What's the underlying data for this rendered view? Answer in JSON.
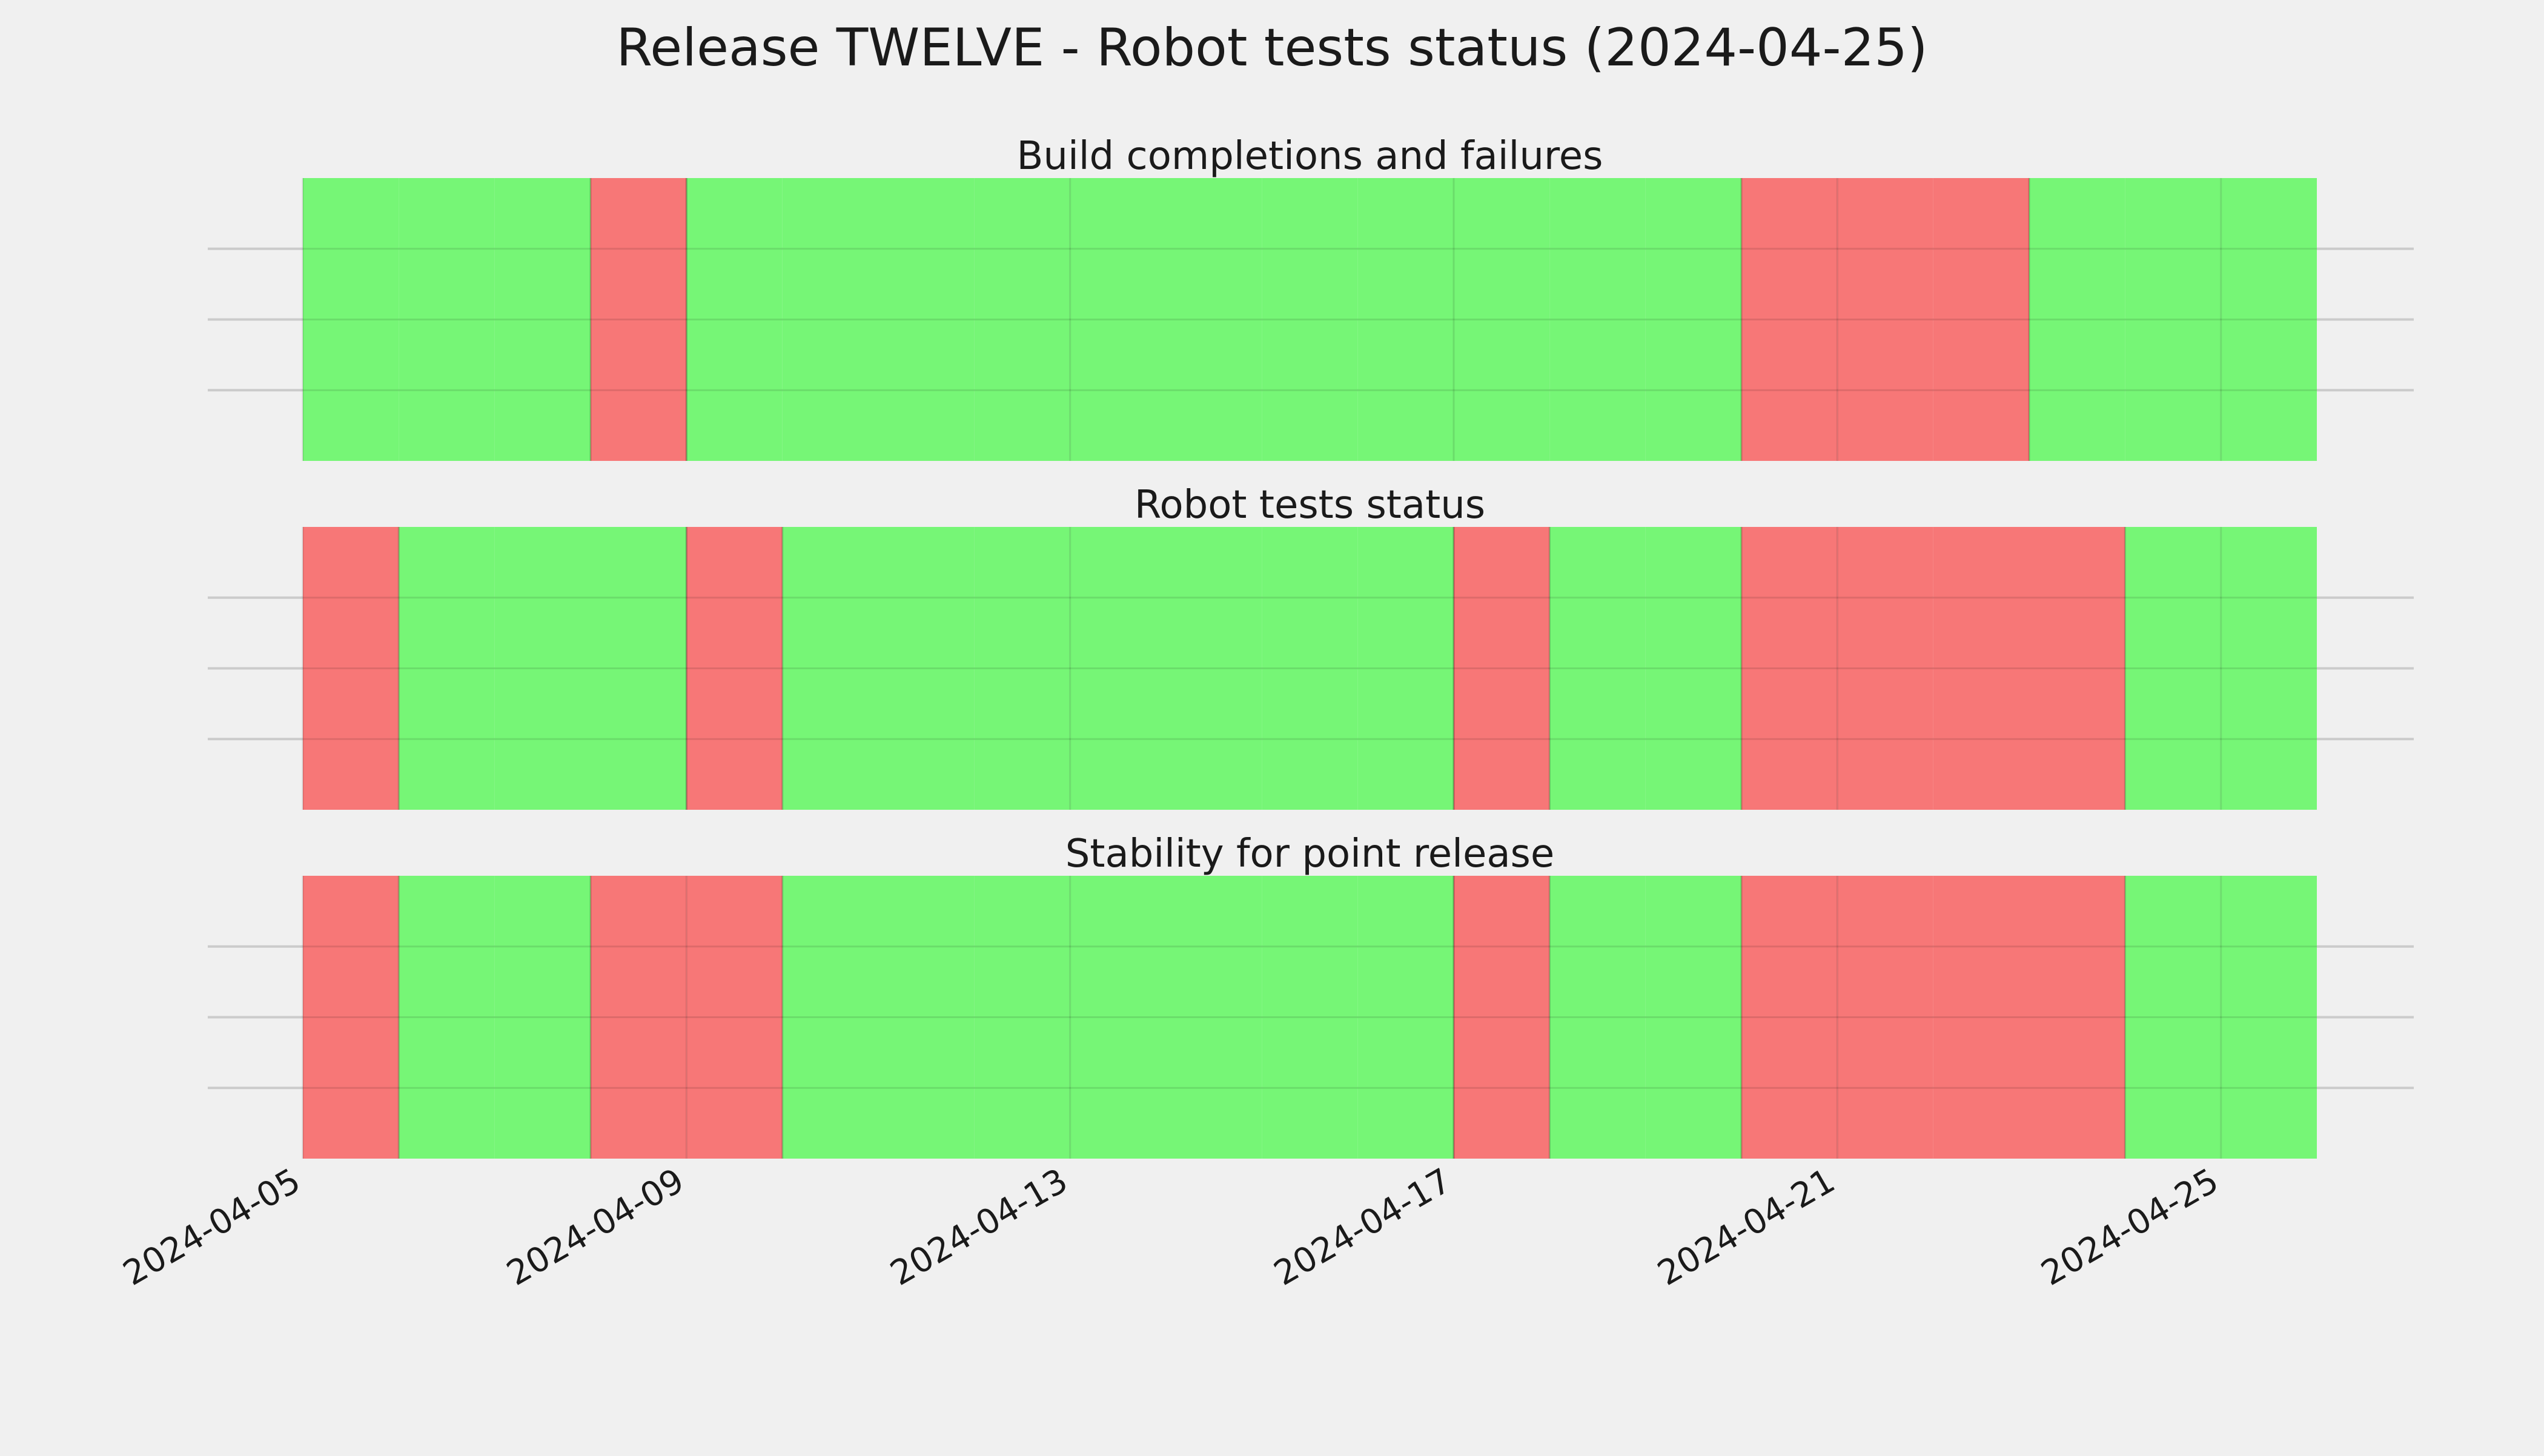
{
  "chart_data": {
    "type": "bar",
    "title": "Release TWELVE - Robot tests status (2024-04-25)",
    "x_range": [
      "2024-04-05",
      "2024-04-26"
    ],
    "x_ticks": [
      "2024-04-05",
      "2024-04-09",
      "2024-04-13",
      "2024-04-17",
      "2024-04-21",
      "2024-04-25"
    ],
    "grid": true,
    "legend": "none",
    "colors": {
      "pass": "#76f676",
      "fail": "#f77777",
      "background": "#f0f0f0"
    },
    "panels": [
      {
        "title": "Build completions and failures",
        "days": [
          {
            "date": "2024-04-05",
            "status": "pass"
          },
          {
            "date": "2024-04-06",
            "status": "pass"
          },
          {
            "date": "2024-04-07",
            "status": "pass"
          },
          {
            "date": "2024-04-08",
            "status": "fail"
          },
          {
            "date": "2024-04-09",
            "status": "pass"
          },
          {
            "date": "2024-04-10",
            "status": "pass"
          },
          {
            "date": "2024-04-11",
            "status": "pass"
          },
          {
            "date": "2024-04-12",
            "status": "pass"
          },
          {
            "date": "2024-04-13",
            "status": "pass"
          },
          {
            "date": "2024-04-14",
            "status": "pass"
          },
          {
            "date": "2024-04-15",
            "status": "pass"
          },
          {
            "date": "2024-04-16",
            "status": "pass"
          },
          {
            "date": "2024-04-17",
            "status": "pass"
          },
          {
            "date": "2024-04-18",
            "status": "pass"
          },
          {
            "date": "2024-04-19",
            "status": "pass"
          },
          {
            "date": "2024-04-20",
            "status": "fail"
          },
          {
            "date": "2024-04-21",
            "status": "fail"
          },
          {
            "date": "2024-04-22",
            "status": "fail"
          },
          {
            "date": "2024-04-23",
            "status": "pass"
          },
          {
            "date": "2024-04-24",
            "status": "pass"
          },
          {
            "date": "2024-04-25",
            "status": "pass"
          }
        ]
      },
      {
        "title": "Robot tests status",
        "days": [
          {
            "date": "2024-04-05",
            "status": "fail"
          },
          {
            "date": "2024-04-06",
            "status": "pass"
          },
          {
            "date": "2024-04-07",
            "status": "pass"
          },
          {
            "date": "2024-04-08",
            "status": "pass"
          },
          {
            "date": "2024-04-09",
            "status": "fail"
          },
          {
            "date": "2024-04-10",
            "status": "pass"
          },
          {
            "date": "2024-04-11",
            "status": "pass"
          },
          {
            "date": "2024-04-12",
            "status": "pass"
          },
          {
            "date": "2024-04-13",
            "status": "pass"
          },
          {
            "date": "2024-04-14",
            "status": "pass"
          },
          {
            "date": "2024-04-15",
            "status": "pass"
          },
          {
            "date": "2024-04-16",
            "status": "pass"
          },
          {
            "date": "2024-04-17",
            "status": "fail"
          },
          {
            "date": "2024-04-18",
            "status": "pass"
          },
          {
            "date": "2024-04-19",
            "status": "pass"
          },
          {
            "date": "2024-04-20",
            "status": "fail"
          },
          {
            "date": "2024-04-21",
            "status": "fail"
          },
          {
            "date": "2024-04-22",
            "status": "fail"
          },
          {
            "date": "2024-04-23",
            "status": "fail"
          },
          {
            "date": "2024-04-24",
            "status": "pass"
          },
          {
            "date": "2024-04-25",
            "status": "pass"
          }
        ]
      },
      {
        "title": "Stability for point release",
        "days": [
          {
            "date": "2024-04-05",
            "status": "fail"
          },
          {
            "date": "2024-04-06",
            "status": "pass"
          },
          {
            "date": "2024-04-07",
            "status": "pass"
          },
          {
            "date": "2024-04-08",
            "status": "fail"
          },
          {
            "date": "2024-04-09",
            "status": "fail"
          },
          {
            "date": "2024-04-10",
            "status": "pass"
          },
          {
            "date": "2024-04-11",
            "status": "pass"
          },
          {
            "date": "2024-04-12",
            "status": "pass"
          },
          {
            "date": "2024-04-13",
            "status": "pass"
          },
          {
            "date": "2024-04-14",
            "status": "pass"
          },
          {
            "date": "2024-04-15",
            "status": "pass"
          },
          {
            "date": "2024-04-16",
            "status": "pass"
          },
          {
            "date": "2024-04-17",
            "status": "fail"
          },
          {
            "date": "2024-04-18",
            "status": "pass"
          },
          {
            "date": "2024-04-19",
            "status": "pass"
          },
          {
            "date": "2024-04-20",
            "status": "fail"
          },
          {
            "date": "2024-04-21",
            "status": "fail"
          },
          {
            "date": "2024-04-22",
            "status": "fail"
          },
          {
            "date": "2024-04-23",
            "status": "fail"
          },
          {
            "date": "2024-04-24",
            "status": "pass"
          },
          {
            "date": "2024-04-25",
            "status": "pass"
          }
        ]
      }
    ]
  }
}
